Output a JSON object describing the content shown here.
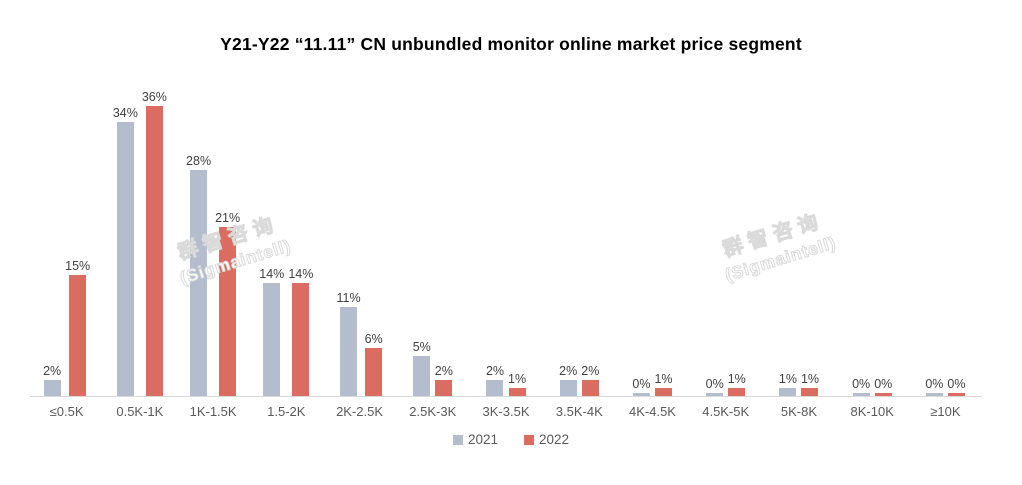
{
  "chart_data": {
    "type": "bar",
    "title": "Y21-Y22 “11.11” CN unbundled monitor online market price segment",
    "categories": [
      "≤0.5K",
      "0.5K-1K",
      "1K-1.5K",
      "1.5-2K",
      "2K-2.5K",
      "2.5K-3K",
      "3K-3.5K",
      "3.5K-4K",
      "4K-4.5K",
      "4.5K-5K",
      "5K-8K",
      "8K-10K",
      "≥10K"
    ],
    "series": [
      {
        "name": "2021",
        "color": "#b3bdce",
        "values": [
          2,
          34,
          28,
          14,
          11,
          5,
          2,
          2,
          0,
          0,
          1,
          0,
          0
        ]
      },
      {
        "name": "2022",
        "color": "#db6c62",
        "values": [
          15,
          36,
          21,
          14,
          6,
          2,
          1,
          2,
          1,
          1,
          1,
          0,
          0
        ]
      }
    ],
    "value_suffix": "%",
    "xlabel": "",
    "ylabel": "",
    "ylim": [
      0,
      38
    ],
    "grid": false,
    "legend_position": "bottom",
    "axis_line_color": "#d9d9d9",
    "label_color": "#404040",
    "tick_color": "#595959"
  },
  "watermark": {
    "line1": "群智咨询",
    "line2": "(Sigmaintell)"
  }
}
